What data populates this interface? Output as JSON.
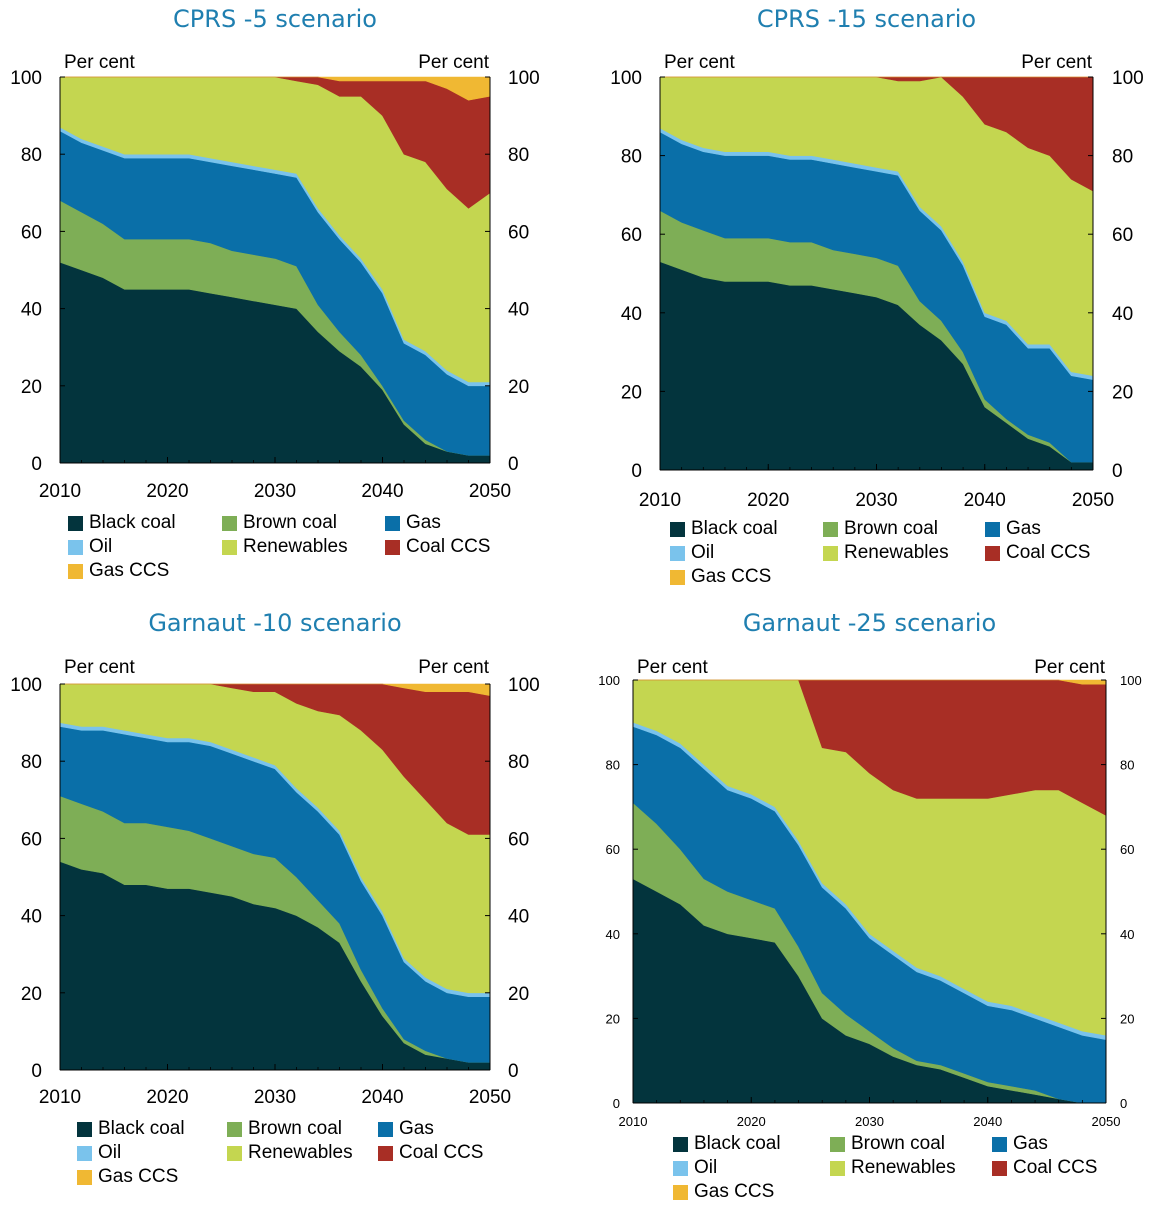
{
  "colors": {
    "Black coal": "#03343d",
    "Brown coal": "#7eae56",
    "Gas": "#0a6fa8",
    "Oil": "#7ac3ec",
    "Renewables": "#c4d650",
    "Coal CCS": "#a82e25",
    "Gas CCS": "#f0b833"
  },
  "legend": [
    "Black coal",
    "Brown coal",
    "Gas",
    "Oil",
    "Renewables",
    "Coal CCS",
    "Gas CCS"
  ],
  "chart_data": [
    {
      "type": "area",
      "stacked": true,
      "title": "CPRS -5 scenario",
      "ylabel_left": "Per cent",
      "ylabel_right": "Per cent",
      "x_ticks": [
        "2010",
        "2020",
        "2030",
        "2040",
        "2050"
      ],
      "y_ticks": [
        "0",
        "20",
        "40",
        "60",
        "80",
        "100"
      ],
      "xlim": [
        2010,
        2050
      ],
      "ylim": [
        0,
        100
      ],
      "x": [
        2010,
        2012,
        2014,
        2016,
        2018,
        2020,
        2022,
        2024,
        2026,
        2028,
        2030,
        2032,
        2034,
        2036,
        2038,
        2040,
        2042,
        2044,
        2046,
        2048,
        2050
      ],
      "series": [
        {
          "name": "Black coal",
          "values": [
            52,
            50,
            48,
            45,
            45,
            45,
            45,
            44,
            43,
            42,
            41,
            40,
            34,
            29,
            25,
            19,
            10,
            5,
            3,
            2,
            2
          ]
        },
        {
          "name": "Brown coal",
          "values": [
            16,
            15,
            14,
            13,
            13,
            13,
            13,
            13,
            12,
            12,
            12,
            11,
            7,
            5,
            3,
            1,
            1,
            1,
            0,
            0,
            0
          ]
        },
        {
          "name": "Gas",
          "values": [
            18,
            18,
            19,
            21,
            21,
            21,
            21,
            21,
            22,
            22,
            22,
            23,
            24,
            24,
            24,
            24,
            20,
            22,
            20,
            18,
            18
          ]
        },
        {
          "name": "Oil",
          "values": [
            1,
            1,
            1,
            1,
            1,
            1,
            1,
            1,
            1,
            1,
            1,
            1,
            1,
            1,
            1,
            1,
            1,
            1,
            1,
            1,
            1
          ]
        },
        {
          "name": "Renewables",
          "values": [
            13,
            16,
            18,
            20,
            20,
            20,
            20,
            21,
            22,
            23,
            24,
            24,
            32,
            36,
            42,
            45,
            48,
            49,
            47,
            45,
            49
          ]
        },
        {
          "name": "Coal CCS",
          "values": [
            0,
            0,
            0,
            0,
            0,
            0,
            0,
            0,
            0,
            0,
            0,
            1,
            2,
            4,
            4,
            9,
            19,
            21,
            26,
            28,
            25
          ]
        },
        {
          "name": "Gas CCS",
          "values": [
            0,
            0,
            0,
            0,
            0,
            0,
            0,
            0,
            0,
            0,
            0,
            0,
            0,
            1,
            1,
            1,
            1,
            1,
            3,
            6,
            5
          ]
        }
      ]
    },
    {
      "type": "area",
      "stacked": true,
      "title": "CPRS -15 scenario",
      "ylabel_left": "Per cent",
      "ylabel_right": "Per cent",
      "x_ticks": [
        "2010",
        "2020",
        "2030",
        "2040",
        "2050"
      ],
      "y_ticks": [
        "0",
        "20",
        "40",
        "60",
        "80",
        "100"
      ],
      "xlim": [
        2010,
        2050
      ],
      "ylim": [
        0,
        100
      ],
      "x": [
        2010,
        2012,
        2014,
        2016,
        2018,
        2020,
        2022,
        2024,
        2026,
        2028,
        2030,
        2032,
        2034,
        2036,
        2038,
        2040,
        2042,
        2044,
        2046,
        2048,
        2050
      ],
      "series": [
        {
          "name": "Black coal",
          "values": [
            53,
            51,
            49,
            48,
            48,
            48,
            47,
            47,
            46,
            45,
            44,
            42,
            37,
            33,
            27,
            16,
            12,
            8,
            6,
            2,
            2
          ]
        },
        {
          "name": "Brown coal",
          "values": [
            13,
            12,
            12,
            11,
            11,
            11,
            11,
            11,
            10,
            10,
            10,
            10,
            6,
            5,
            3,
            2,
            1,
            1,
            1,
            0,
            0
          ]
        },
        {
          "name": "Gas",
          "values": [
            20,
            20,
            20,
            21,
            21,
            21,
            21,
            21,
            22,
            22,
            22,
            23,
            23,
            23,
            22,
            21,
            24,
            22,
            24,
            22,
            21
          ]
        },
        {
          "name": "Oil",
          "values": [
            1,
            1,
            1,
            1,
            1,
            1,
            1,
            1,
            1,
            1,
            1,
            1,
            1,
            1,
            1,
            1,
            1,
            1,
            1,
            1,
            1
          ]
        },
        {
          "name": "Renewables",
          "values": [
            13,
            16,
            18,
            19,
            19,
            19,
            20,
            20,
            21,
            22,
            23,
            23,
            32,
            38,
            42,
            48,
            48,
            50,
            48,
            49,
            47
          ]
        },
        {
          "name": "Coal CCS",
          "values": [
            0,
            0,
            0,
            0,
            0,
            0,
            0,
            0,
            0,
            0,
            0,
            1,
            1,
            0,
            5,
            12,
            14,
            18,
            20,
            26,
            29
          ]
        },
        {
          "name": "Gas CCS",
          "values": [
            0,
            0,
            0,
            0,
            0,
            0,
            0,
            0,
            0,
            0,
            0,
            0,
            0,
            0,
            0,
            0,
            0,
            0,
            0,
            0,
            0
          ]
        }
      ]
    },
    {
      "type": "area",
      "stacked": true,
      "title": "Garnaut -10 scenario",
      "ylabel_left": "Per cent",
      "ylabel_right": "Per cent",
      "x_ticks": [
        "2010",
        "2020",
        "2030",
        "2040",
        "2050"
      ],
      "y_ticks": [
        "0",
        "20",
        "40",
        "60",
        "80",
        "100"
      ],
      "xlim": [
        2010,
        2050
      ],
      "ylim": [
        0,
        100
      ],
      "x": [
        2010,
        2012,
        2014,
        2016,
        2018,
        2020,
        2022,
        2024,
        2026,
        2028,
        2030,
        2032,
        2034,
        2036,
        2038,
        2040,
        2042,
        2044,
        2046,
        2048,
        2050
      ],
      "series": [
        {
          "name": "Black coal",
          "values": [
            54,
            52,
            51,
            48,
            48,
            47,
            47,
            46,
            45,
            43,
            42,
            40,
            37,
            33,
            23,
            14,
            7,
            4,
            3,
            2,
            2
          ]
        },
        {
          "name": "Brown coal",
          "values": [
            17,
            17,
            16,
            16,
            16,
            16,
            15,
            14,
            13,
            13,
            13,
            10,
            7,
            5,
            3,
            2,
            1,
            1,
            0,
            0,
            0
          ]
        },
        {
          "name": "Gas",
          "values": [
            18,
            19,
            21,
            23,
            22,
            22,
            23,
            24,
            24,
            24,
            23,
            22,
            23,
            23,
            23,
            24,
            20,
            18,
            17,
            17,
            17
          ]
        },
        {
          "name": "Oil",
          "values": [
            1,
            1,
            1,
            1,
            1,
            1,
            1,
            1,
            1,
            1,
            1,
            1,
            1,
            1,
            1,
            1,
            1,
            1,
            1,
            1,
            1
          ]
        },
        {
          "name": "Renewables",
          "values": [
            10,
            11,
            11,
            12,
            13,
            14,
            14,
            15,
            16,
            17,
            19,
            22,
            25,
            30,
            38,
            42,
            47,
            46,
            43,
            41,
            41
          ]
        },
        {
          "name": "Coal CCS",
          "values": [
            0,
            0,
            0,
            0,
            0,
            0,
            0,
            0,
            1,
            2,
            2,
            5,
            7,
            8,
            12,
            17,
            23,
            28,
            34,
            37,
            36
          ]
        },
        {
          "name": "Gas CCS",
          "values": [
            0,
            0,
            0,
            0,
            0,
            0,
            0,
            0,
            0,
            0,
            0,
            0,
            0,
            0,
            0,
            0,
            1,
            2,
            2,
            2,
            3
          ]
        }
      ]
    },
    {
      "type": "area",
      "stacked": true,
      "title": "Garnaut -25 scenario",
      "ylabel_left": "Per cent",
      "ylabel_right": "Per cent",
      "x_ticks": [
        "2010",
        "2020",
        "2030",
        "2040",
        "2050"
      ],
      "y_ticks": [
        "0",
        "20",
        "40",
        "60",
        "80",
        "100"
      ],
      "xlim": [
        2010,
        2050
      ],
      "ylim": [
        0,
        100
      ],
      "x": [
        2010,
        2012,
        2014,
        2016,
        2018,
        2020,
        2022,
        2024,
        2026,
        2028,
        2030,
        2032,
        2034,
        2036,
        2038,
        2040,
        2042,
        2044,
        2046,
        2048,
        2050
      ],
      "series": [
        {
          "name": "Black coal",
          "values": [
            53,
            50,
            47,
            42,
            40,
            39,
            38,
            30,
            20,
            16,
            14,
            11,
            9,
            8,
            6,
            4,
            3,
            2,
            1,
            0,
            0
          ]
        },
        {
          "name": "Brown coal",
          "values": [
            18,
            16,
            13,
            11,
            10,
            9,
            8,
            7,
            6,
            5,
            3,
            2,
            1,
            1,
            1,
            1,
            1,
            1,
            0,
            0,
            0
          ]
        },
        {
          "name": "Gas",
          "values": [
            18,
            21,
            24,
            26,
            24,
            24,
            23,
            24,
            25,
            25,
            22,
            22,
            21,
            20,
            19,
            18,
            18,
            17,
            17,
            16,
            15
          ]
        },
        {
          "name": "Oil",
          "values": [
            1,
            1,
            1,
            1,
            1,
            1,
            1,
            1,
            1,
            1,
            1,
            1,
            1,
            1,
            1,
            1,
            1,
            1,
            1,
            1,
            1
          ]
        },
        {
          "name": "Renewables",
          "values": [
            10,
            12,
            15,
            20,
            25,
            27,
            30,
            38,
            32,
            36,
            38,
            38,
            40,
            42,
            45,
            48,
            50,
            53,
            55,
            54,
            52
          ]
        },
        {
          "name": "Coal CCS",
          "values": [
            0,
            0,
            0,
            0,
            0,
            0,
            0,
            0,
            16,
            17,
            22,
            26,
            28,
            28,
            28,
            28,
            27,
            26,
            26,
            28,
            31
          ]
        },
        {
          "name": "Gas CCS",
          "values": [
            0,
            0,
            0,
            0,
            0,
            0,
            0,
            0,
            0,
            0,
            0,
            0,
            0,
            0,
            0,
            0,
            0,
            0,
            0,
            1,
            1
          ]
        }
      ]
    }
  ]
}
